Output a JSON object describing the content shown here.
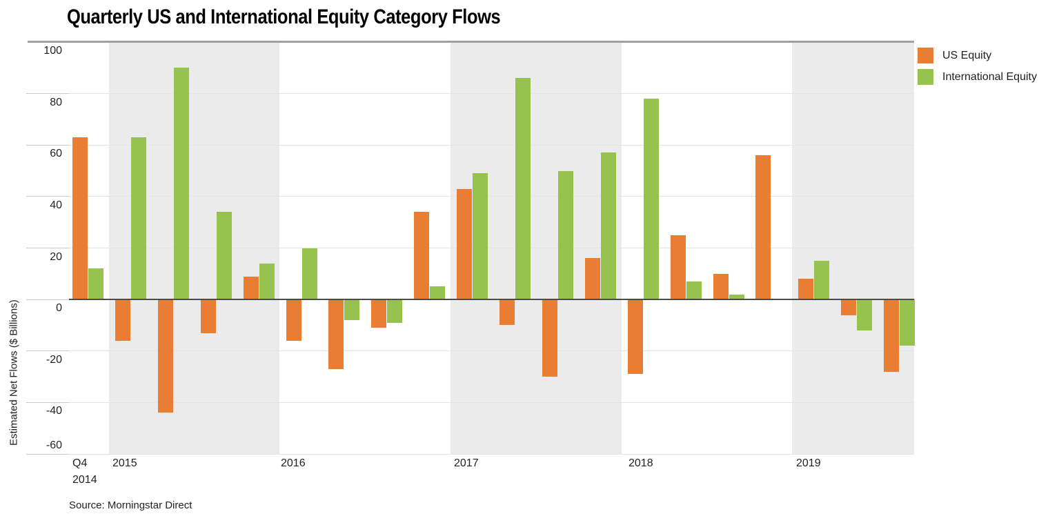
{
  "page": {
    "title": "Quarterly US and International Equity Category Flows",
    "source_note": "Source: Morningstar Direct"
  },
  "chart_data": {
    "type": "bar",
    "title": "Quarterly US and International Equity Category Flows",
    "ylabel": "Estimated Net Flows ($ Billions)",
    "source": "Source: Morningstar Direct",
    "ylim": [
      -60,
      100
    ],
    "yticks": [
      100,
      80,
      60,
      40,
      20,
      0,
      -20,
      -40,
      -60
    ],
    "grid": "horizontal",
    "legend_position": "top-right",
    "band_color": "#EBEBEB",
    "zero_line_color": "#4A4A4A",
    "categories": [
      "Q4 2014",
      "Q1 2015",
      "Q2 2015",
      "Q3 2015",
      "Q4 2015",
      "Q1 2016",
      "Q2 2016",
      "Q3 2016",
      "Q4 2016",
      "Q1 2017",
      "Q2 2017",
      "Q3 2017",
      "Q4 2017",
      "Q1 2018",
      "Q2 2018",
      "Q3 2018",
      "Q4 2018",
      "Q1 2019",
      "Q2 2019",
      "Q3 2019"
    ],
    "series": [
      {
        "name": "US Equity",
        "color": "#E97D33",
        "values": [
          63,
          -16,
          -44,
          -13,
          9,
          -16,
          -27,
          -11,
          34,
          43,
          -10,
          -30,
          16,
          -29,
          25,
          10,
          56,
          8,
          -6,
          -28
        ]
      },
      {
        "name": "International Equity",
        "color": "#95C34E",
        "values": [
          12,
          63,
          90,
          34,
          14,
          20,
          -8,
          -9,
          5,
          49,
          86,
          50,
          57,
          78,
          7,
          2,
          0,
          15,
          -12,
          -18
        ]
      }
    ],
    "x_axis_year_labels": [
      {
        "line1": "Q4",
        "line2": "2014"
      },
      {
        "line1": "2015"
      },
      {
        "line1": "2016"
      },
      {
        "line1": "2017"
      },
      {
        "line1": "2018"
      },
      {
        "line1": "2019"
      }
    ],
    "shaded_year_bands": [
      "2015",
      "2017",
      "2019"
    ]
  }
}
